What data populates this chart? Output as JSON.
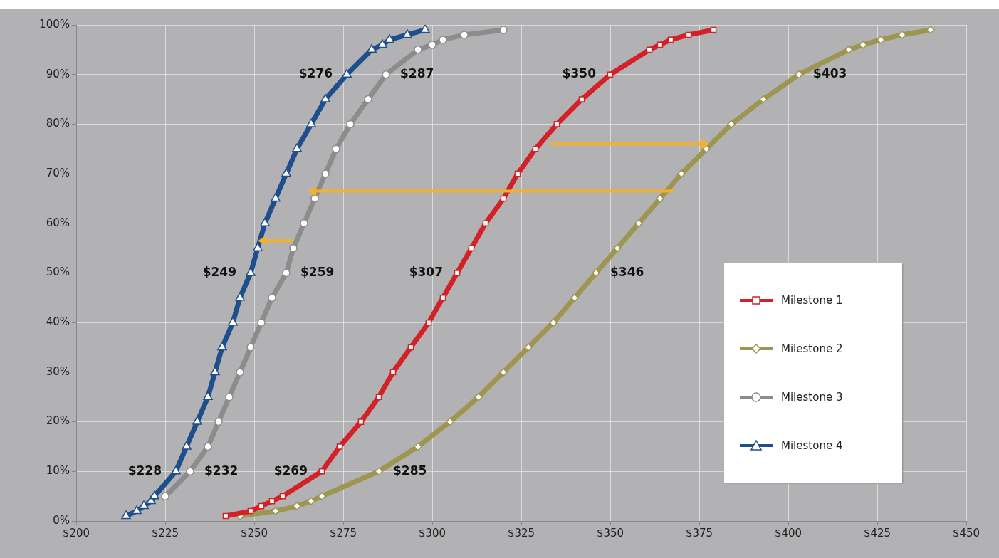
{
  "chart_data": {
    "type": "line",
    "xlim": [
      200,
      450
    ],
    "xticks": [
      {
        "value": 200,
        "label": "$200"
      },
      {
        "value": 225,
        "label": "$225"
      },
      {
        "value": 250,
        "label": "$250"
      },
      {
        "value": 275,
        "label": "$275"
      },
      {
        "value": 300,
        "label": "$300"
      },
      {
        "value": 325,
        "label": "$325"
      },
      {
        "value": 350,
        "label": "$350"
      },
      {
        "value": 375,
        "label": "$375"
      },
      {
        "value": 400,
        "label": "$400"
      },
      {
        "value": 425,
        "label": "$425"
      },
      {
        "value": 450,
        "label": "$450"
      }
    ],
    "ylim": [
      0,
      100
    ],
    "yticks": [
      {
        "value": 0,
        "label": "0%"
      },
      {
        "value": 10,
        "label": "10%"
      },
      {
        "value": 20,
        "label": "20%"
      },
      {
        "value": 30,
        "label": "30%"
      },
      {
        "value": 40,
        "label": "40%"
      },
      {
        "value": 50,
        "label": "50%"
      },
      {
        "value": 60,
        "label": "60%"
      },
      {
        "value": 70,
        "label": "70%"
      },
      {
        "value": 80,
        "label": "80%"
      },
      {
        "value": 90,
        "label": "90%"
      },
      {
        "value": 100,
        "label": "100%"
      }
    ],
    "grid": true,
    "legend": "right",
    "line_style": "solid",
    "series": [
      {
        "name": "Milestone 1",
        "color": "#d42027",
        "marker": "square",
        "x": [
          242,
          249,
          252,
          255,
          258,
          269,
          274,
          280,
          285,
          289,
          294,
          299,
          303,
          307,
          311,
          315,
          320,
          324,
          329,
          335,
          342,
          350,
          361,
          364,
          367,
          372,
          379
        ],
        "values": [
          1,
          2,
          3,
          4,
          5,
          10,
          15,
          20,
          25,
          30,
          35,
          40,
          45,
          50,
          55,
          60,
          65,
          70,
          75,
          80,
          85,
          90,
          95,
          96,
          97,
          98,
          99
        ]
      },
      {
        "name": "Milestone 2",
        "color": "#9c9650",
        "marker": "diamond",
        "x": [
          246,
          256,
          262,
          266,
          269,
          285,
          296,
          305,
          313,
          320,
          327,
          334,
          340,
          346,
          352,
          358,
          364,
          370,
          377,
          384,
          393,
          403,
          417,
          421,
          426,
          432,
          440
        ],
        "values": [
          1,
          2,
          3,
          4,
          5,
          10,
          15,
          20,
          25,
          30,
          35,
          40,
          45,
          50,
          55,
          60,
          65,
          70,
          75,
          80,
          85,
          90,
          95,
          96,
          97,
          98,
          99
        ]
      },
      {
        "name": "Milestone 3",
        "color": "#8c8c8c",
        "marker": "circle",
        "x": [
          225,
          232,
          237,
          240,
          243,
          246,
          249,
          252,
          255,
          259,
          261,
          264,
          267,
          270,
          273,
          277,
          282,
          287,
          296,
          300,
          303,
          309,
          320
        ],
        "values": [
          5,
          10,
          15,
          20,
          25,
          30,
          35,
          40,
          45,
          50,
          55,
          60,
          65,
          70,
          75,
          80,
          85,
          90,
          95,
          96,
          97,
          98,
          99
        ]
      },
      {
        "name": "Milestone 4",
        "color": "#1f4e8c",
        "marker": "triangle",
        "x": [
          214,
          217,
          219,
          221,
          222,
          228,
          231,
          234,
          237,
          239,
          241,
          244,
          246,
          249,
          251,
          253,
          256,
          259,
          262,
          266,
          270,
          276,
          283,
          286,
          288,
          293,
          298
        ],
        "values": [
          1,
          2,
          3,
          4,
          5,
          10,
          15,
          20,
          25,
          30,
          35,
          40,
          45,
          50,
          55,
          60,
          65,
          70,
          75,
          80,
          85,
          90,
          95,
          96,
          97,
          98,
          99
        ]
      }
    ],
    "annotations": [
      {
        "text": "$228",
        "x": 228,
        "y": 10
      },
      {
        "text": "$232",
        "x": 232,
        "y": 10
      },
      {
        "text": "$269",
        "x": 269,
        "y": 10
      },
      {
        "text": "$285",
        "x": 285,
        "y": 10
      },
      {
        "text": "$249",
        "x": 249,
        "y": 50
      },
      {
        "text": "$259",
        "x": 259,
        "y": 50
      },
      {
        "text": "$307",
        "x": 307,
        "y": 50
      },
      {
        "text": "$346",
        "x": 346,
        "y": 50
      },
      {
        "text": "$276",
        "x": 276,
        "y": 90
      },
      {
        "text": "$287",
        "x": 287,
        "y": 90
      },
      {
        "text": "$350",
        "x": 350,
        "y": 90
      },
      {
        "text": "$403",
        "x": 403,
        "y": 90
      }
    ]
  }
}
